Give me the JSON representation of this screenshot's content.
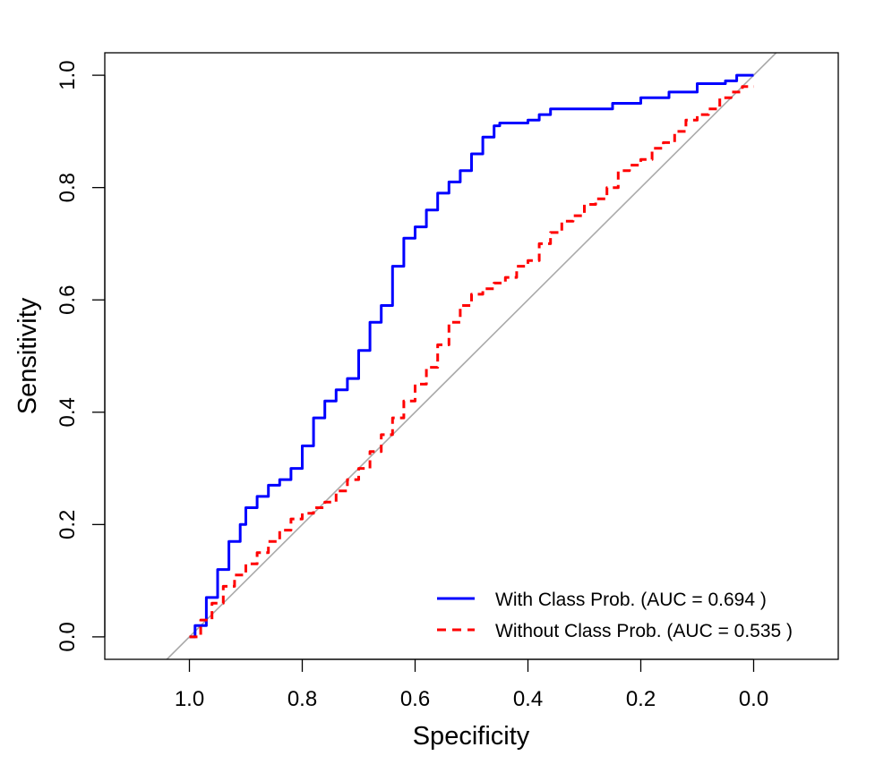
{
  "chart_data": {
    "type": "line",
    "xlabel": "Specificity",
    "ylabel": "Sensitivity",
    "xlim": [
      1.15,
      -0.15
    ],
    "ylim": [
      -0.04,
      1.04
    ],
    "x_reversed": true,
    "x_ticks": [
      "1.0",
      "0.8",
      "0.6",
      "0.4",
      "0.2",
      "0.0"
    ],
    "x_tick_values": [
      1.0,
      0.8,
      0.6,
      0.4,
      0.2,
      0.0
    ],
    "y_ticks": [
      "0.0",
      "0.2",
      "0.4",
      "0.6",
      "0.8",
      "1.0"
    ],
    "y_tick_values": [
      0.0,
      0.2,
      0.4,
      0.6,
      0.8,
      1.0
    ],
    "grid": false,
    "legend_position": "bottom-right",
    "reference_line": {
      "from": [
        1.04,
        -0.04
      ],
      "to": [
        -0.04,
        1.04
      ],
      "color": "#aaaaaa"
    },
    "series": [
      {
        "name": "With Class Prob. (AUC = 0.694 )",
        "color": "#0000ff",
        "style": "solid",
        "x": [
          1.0,
          0.99,
          0.97,
          0.95,
          0.93,
          0.91,
          0.9,
          0.88,
          0.86,
          0.84,
          0.82,
          0.8,
          0.78,
          0.76,
          0.74,
          0.72,
          0.7,
          0.68,
          0.66,
          0.64,
          0.62,
          0.6,
          0.58,
          0.56,
          0.54,
          0.52,
          0.5,
          0.48,
          0.46,
          0.45,
          0.4,
          0.38,
          0.36,
          0.3,
          0.25,
          0.2,
          0.15,
          0.1,
          0.05,
          0.03,
          0.0
        ],
        "y": [
          0.0,
          0.02,
          0.07,
          0.12,
          0.17,
          0.2,
          0.23,
          0.25,
          0.27,
          0.28,
          0.3,
          0.34,
          0.39,
          0.42,
          0.44,
          0.46,
          0.51,
          0.56,
          0.59,
          0.66,
          0.71,
          0.73,
          0.76,
          0.79,
          0.81,
          0.83,
          0.86,
          0.89,
          0.91,
          0.915,
          0.92,
          0.93,
          0.94,
          0.94,
          0.95,
          0.96,
          0.97,
          0.985,
          0.99,
          1.0,
          1.0
        ]
      },
      {
        "name": "Without Class Prob. (AUC = 0.535 )",
        "color": "#ff0000",
        "style": "dashed",
        "x": [
          1.0,
          0.98,
          0.96,
          0.94,
          0.92,
          0.9,
          0.88,
          0.86,
          0.84,
          0.82,
          0.8,
          0.78,
          0.76,
          0.74,
          0.72,
          0.7,
          0.68,
          0.66,
          0.64,
          0.62,
          0.6,
          0.58,
          0.56,
          0.54,
          0.52,
          0.5,
          0.48,
          0.46,
          0.44,
          0.42,
          0.4,
          0.38,
          0.36,
          0.34,
          0.32,
          0.3,
          0.28,
          0.26,
          0.24,
          0.22,
          0.2,
          0.18,
          0.16,
          0.14,
          0.12,
          0.1,
          0.08,
          0.06,
          0.04,
          0.02,
          0.0
        ],
        "y": [
          0.0,
          0.03,
          0.06,
          0.09,
          0.11,
          0.13,
          0.15,
          0.17,
          0.19,
          0.21,
          0.22,
          0.23,
          0.24,
          0.26,
          0.28,
          0.3,
          0.33,
          0.36,
          0.39,
          0.42,
          0.45,
          0.48,
          0.52,
          0.56,
          0.59,
          0.61,
          0.62,
          0.63,
          0.64,
          0.66,
          0.67,
          0.7,
          0.72,
          0.74,
          0.75,
          0.77,
          0.78,
          0.8,
          0.83,
          0.84,
          0.85,
          0.87,
          0.88,
          0.9,
          0.92,
          0.93,
          0.94,
          0.96,
          0.97,
          0.98,
          0.98
        ]
      }
    ]
  }
}
